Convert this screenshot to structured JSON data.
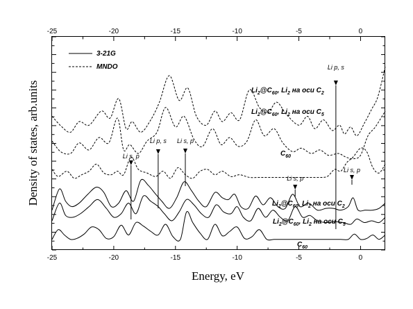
{
  "chart_data": {
    "type": "line",
    "xlabel": "Energy, eV",
    "ylabel": "Density of states, arb.units",
    "xlim": [
      -25,
      2
    ],
    "xticks": [
      -25,
      -20,
      -15,
      -10,
      -5,
      0
    ],
    "xtick_labels": [
      "-25",
      "-20",
      "-15",
      "-10",
      "-5",
      "0"
    ],
    "top_axis_ticks": true,
    "y_ticks_unlabeled": true,
    "grid": false,
    "legend_position": "top-left",
    "legend": [
      {
        "label": "3-21G",
        "style": "solid"
      },
      {
        "label": "MNDO",
        "style": "dashed"
      }
    ],
    "series": [
      {
        "name": "MNDO: Li2@C60 Li2 on C2 axis",
        "label_parts": [
          [
            "Li",
            ""
          ],
          [
            "2",
            "sub"
          ],
          [
            "@C",
            ""
          ],
          [
            "60",
            "sub"
          ],
          [
            ", Li",
            ""
          ],
          [
            "2",
            "sub"
          ],
          [
            " на оси C",
            ""
          ],
          [
            "2",
            "sub"
          ]
        ],
        "style": "dashed",
        "baseline": 5.9,
        "x": [
          -25,
          -24.2,
          -23.5,
          -22.8,
          -22,
          -21,
          -20.3,
          -19.6,
          -19,
          -18.5,
          -17.8,
          -17,
          -16.3,
          -15.5,
          -14.7,
          -14,
          -13.3,
          -12.5,
          -11.8,
          -11.2,
          -10.5,
          -9.8,
          -9,
          -8.2,
          -7.5,
          -6.8,
          -6,
          -5,
          -4.3,
          -3.7,
          -3,
          -2.3,
          -1.7,
          -1.3,
          -0.8,
          -0.3,
          0.3,
          0.9,
          1.4,
          2
        ],
        "y": [
          7.0,
          6.4,
          6.1,
          6.7,
          6.5,
          7.3,
          6.9,
          8.0,
          6.3,
          6.7,
          6.1,
          6.8,
          7.8,
          9.3,
          7.9,
          8.6,
          7.0,
          6.5,
          7.3,
          6.7,
          7.2,
          6.8,
          8.5,
          7.5,
          7.2,
          7.8,
          7.1,
          6.5,
          7.0,
          6.3,
          6.8,
          6.2,
          6.5,
          6.0,
          6.4,
          5.9,
          6.6,
          7.4,
          8.1,
          9.8
        ]
      },
      {
        "name": "MNDO: Li2@C60 Li2 on C5 axis",
        "label_parts": [
          [
            "Li",
            ""
          ],
          [
            "2",
            "sub"
          ],
          [
            "@C",
            ""
          ],
          [
            "60",
            "sub"
          ],
          [
            ", Li",
            ""
          ],
          [
            "2",
            "sub"
          ],
          [
            " на оси C",
            ""
          ],
          [
            "5",
            "sub"
          ]
        ],
        "style": "dashed",
        "baseline": 4.7,
        "x": [
          -25,
          -24.3,
          -23.5,
          -22.8,
          -22,
          -21.2,
          -20.4,
          -19.7,
          -19.2,
          -18.7,
          -18,
          -17.3,
          -16.5,
          -15.8,
          -15,
          -14.3,
          -13.5,
          -12.8,
          -12,
          -11.3,
          -10.6,
          -9.9,
          -9.2,
          -8.5,
          -7.8,
          -7,
          -6.3,
          -5.5,
          -4.8,
          -4,
          -3.3,
          -2.6,
          -1.8,
          -1.2,
          -0.6,
          0,
          0.6,
          1.2,
          2
        ],
        "y": [
          5.6,
          5.0,
          4.9,
          5.5,
          5.1,
          5.8,
          5.5,
          6.9,
          5.1,
          5.4,
          4.9,
          5.6,
          6.1,
          7.5,
          6.4,
          7.0,
          5.7,
          5.3,
          6.3,
          5.4,
          5.8,
          5.3,
          5.6,
          6.8,
          5.9,
          6.3,
          5.5,
          5.0,
          5.2,
          4.9,
          5.1,
          4.8,
          4.9,
          4.7,
          4.6,
          4.8,
          5.9,
          6.4,
          7.3
        ]
      },
      {
        "name": "MNDO: C60",
        "label_parts": [
          [
            "C",
            ""
          ],
          [
            "60",
            "sub"
          ]
        ],
        "style": "dashed",
        "baseline": 3.55,
        "x": [
          -25,
          -24.5,
          -23.8,
          -23.2,
          -22.6,
          -22,
          -21.4,
          -20.8,
          -20.2,
          -19.7,
          -19.2,
          -18.6,
          -18,
          -17.3,
          -16.6,
          -16,
          -15.4,
          -14.8,
          -14.2,
          -13.6,
          -13,
          -12.4,
          -11.8,
          -11.2,
          -10.5,
          -9.8,
          -9,
          -8.2,
          -7.4,
          -6.6,
          -5.8,
          -5,
          -4.2,
          -3.4,
          -2.7,
          -2.1,
          -1.6,
          -1.1,
          -0.6,
          0,
          0.5,
          1,
          1.5,
          2
        ],
        "y": [
          4.0,
          3.6,
          3.9,
          3.5,
          3.7,
          3.9,
          4.3,
          3.8,
          3.7,
          3.9,
          3.7,
          4.7,
          4.0,
          3.8,
          3.6,
          3.9,
          3.5,
          4.1,
          3.7,
          3.5,
          3.9,
          4.0,
          3.7,
          3.9,
          3.6,
          3.7,
          3.55,
          3.55,
          3.55,
          3.55,
          3.55,
          3.55,
          3.55,
          3.55,
          3.6,
          4.0,
          3.9,
          4.4,
          4.7,
          5.2,
          5.0,
          4.1,
          3.8,
          4.3
        ]
      },
      {
        "name": "3-21G: Li2@C60 Li2 on C2 axis",
        "label_parts": [
          [
            "Li",
            ""
          ],
          [
            "2",
            "sub"
          ],
          [
            "@C",
            ""
          ],
          [
            "60",
            "sub"
          ],
          [
            ", Li",
            ""
          ],
          [
            "2",
            "sub"
          ],
          [
            " на оси C",
            ""
          ],
          [
            "2",
            "sub"
          ]
        ],
        "style": "solid",
        "baseline": 1.6,
        "x": [
          -25,
          -24.4,
          -23.9,
          -23.4,
          -22.8,
          -22.1,
          -21.4,
          -20.8,
          -20.2,
          -19.6,
          -19,
          -18.4,
          -17.8,
          -17.2,
          -16.6,
          -16.1,
          -15.5,
          -14.9,
          -14.3,
          -13.7,
          -13.1,
          -12.5,
          -11.8,
          -11.2,
          -10.7,
          -10.2,
          -9.7,
          -9.1,
          -8.5,
          -7.9,
          -7.3,
          -6.7,
          -6.1,
          -5.5,
          -4.9,
          -4.2,
          -3.5,
          -2.8,
          -2.2,
          -1.6,
          -1.0,
          -0.6,
          -0.2,
          0.4,
          1.0,
          1.5,
          2
        ],
        "y": [
          1.7,
          2.9,
          2.2,
          1.9,
          2.1,
          2.6,
          3.0,
          2.7,
          1.9,
          2.1,
          2.8,
          2.2,
          3.4,
          3.1,
          2.6,
          2.2,
          1.8,
          2.4,
          3.3,
          2.8,
          2.2,
          1.9,
          2.7,
          2.4,
          2.3,
          2.6,
          1.9,
          1.8,
          2.5,
          2.0,
          2.4,
          1.9,
          1.8,
          2.6,
          1.9,
          2.1,
          1.7,
          1.8,
          1.8,
          1.7,
          1.9,
          2.4,
          1.7,
          1.7,
          1.7,
          1.8,
          2.1
        ]
      },
      {
        "name": "3-21G: Li2@C60 Li2 on C5 axis",
        "label_parts": [
          [
            "Li",
            ""
          ],
          [
            "2",
            "sub"
          ],
          [
            "@C",
            ""
          ],
          [
            "60",
            "sub"
          ],
          [
            ", Li",
            ""
          ],
          [
            "2",
            "sub"
          ],
          [
            " на оси C",
            ""
          ],
          [
            "5",
            "sub"
          ]
        ],
        "style": "solid",
        "baseline": 0.95,
        "x": [
          -25,
          -24.4,
          -23.9,
          -23.3,
          -22.7,
          -22,
          -21.3,
          -20.6,
          -20,
          -19.4,
          -18.8,
          -18.2,
          -17.6,
          -17,
          -16.4,
          -15.9,
          -15.3,
          -14.7,
          -14.1,
          -13.5,
          -12.9,
          -12.3,
          -11.7,
          -11.1,
          -10.5,
          -10,
          -9.5,
          -8.9,
          -8.3,
          -7.7,
          -7.1,
          -6.5,
          -5.9,
          -5.3,
          -4.7,
          -4.1,
          -3.5,
          -2.8,
          -2.1,
          -1.4,
          -0.8,
          -0.3,
          0.3,
          0.9,
          1.5,
          2
        ],
        "y": [
          1.1,
          2.1,
          1.4,
          1.3,
          1.5,
          1.9,
          2.3,
          1.8,
          1.3,
          1.5,
          2.1,
          1.5,
          2.5,
          2.2,
          1.9,
          1.5,
          1.1,
          1.6,
          2.3,
          2.0,
          1.5,
          1.3,
          2.0,
          1.6,
          1.5,
          1.9,
          1.3,
          1.1,
          1.8,
          1.3,
          1.7,
          1.3,
          1.1,
          1.9,
          1.3,
          1.4,
          1.1,
          1.0,
          1.05,
          1.0,
          0.9,
          1.2,
          1.0,
          1.1,
          1.0,
          1.3
        ]
      },
      {
        "name": "3-21G: C60",
        "label_parts": [
          [
            "C",
            ""
          ],
          [
            "60",
            "sub"
          ]
        ],
        "style": "solid",
        "baseline": 0.0,
        "x": [
          -25,
          -24.5,
          -24,
          -23.5,
          -23,
          -22.4,
          -21.8,
          -21.2,
          -20.6,
          -20,
          -19.4,
          -18.8,
          -18.2,
          -17.6,
          -17,
          -16.4,
          -15.8,
          -15.2,
          -14.6,
          -14.1,
          -13.6,
          -13,
          -12.4,
          -11.8,
          -11.2,
          -10.6,
          -10,
          -9.4,
          -8.8,
          -8.2,
          -7.6,
          -7,
          -6.4,
          -5.8,
          -5.2,
          -4.6,
          -4,
          -3.4,
          -2.8,
          -2.2,
          -1.6,
          -1.0,
          -0.5,
          0,
          0.5,
          1.0,
          1.5,
          2
        ],
        "y": [
          0.05,
          0.6,
          0.3,
          0.05,
          0.1,
          0.35,
          0.75,
          0.6,
          0.1,
          0.2,
          0.85,
          0.3,
          1.0,
          0.8,
          0.5,
          0.3,
          0.9,
          0.2,
          0.05,
          1.6,
          1.0,
          0.4,
          0.05,
          0.9,
          0.25,
          0.5,
          0.75,
          0.1,
          0.2,
          0.6,
          0.05,
          0.05,
          0.05,
          0.05,
          0.05,
          0.05,
          0.05,
          0.05,
          0.05,
          0.05,
          0.05,
          0.05,
          0.35,
          0.05,
          0.1,
          0.3,
          0.05,
          0.3
        ]
      }
    ],
    "annotations": [
      {
        "text": "Li p, s",
        "x": -2.0
      },
      {
        "text": "Li s, p",
        "x": -18.6
      },
      {
        "text": "Li p, s",
        "x": -16.4
      },
      {
        "text": "Li s, p",
        "x": -14.2
      },
      {
        "text": "Li s, p",
        "x": -5.3
      },
      {
        "text": "Li s, p",
        "x": -0.7
      }
    ]
  }
}
